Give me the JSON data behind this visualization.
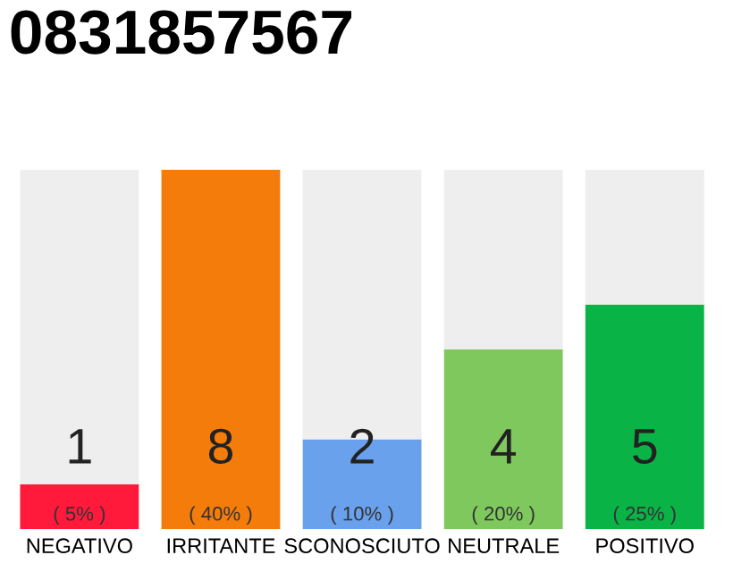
{
  "chart_data": {
    "type": "bar",
    "title": "0831857567",
    "categories": [
      "NEGATIVO",
      "IRRITANTE",
      "SCONOSCIUTO",
      "NEUTRALE",
      "POSITIVO"
    ],
    "stacked": true,
    "series": [
      {
        "colors": [
          "#ff1a3c",
          "#f47c0b",
          "#6aa1ec",
          "#7ec85e",
          "#0ab345"
        ],
        "values": [
          1,
          8,
          2,
          4,
          5
        ],
        "value_labels": [
          "1",
          "8",
          "2",
          "4",
          "5"
        ]
      },
      {
        "color": "#eeeeee",
        "values": [
          7,
          0,
          6,
          4,
          3
        ]
      }
    ],
    "ylim": [
      0,
      8
    ],
    "tick_labels": "x",
    "grid": false,
    "legend": false,
    "annotations": [
      "( 5% )",
      "( 40% )",
      "( 10% )",
      "( 20% )",
      "( 25% )"
    ]
  }
}
